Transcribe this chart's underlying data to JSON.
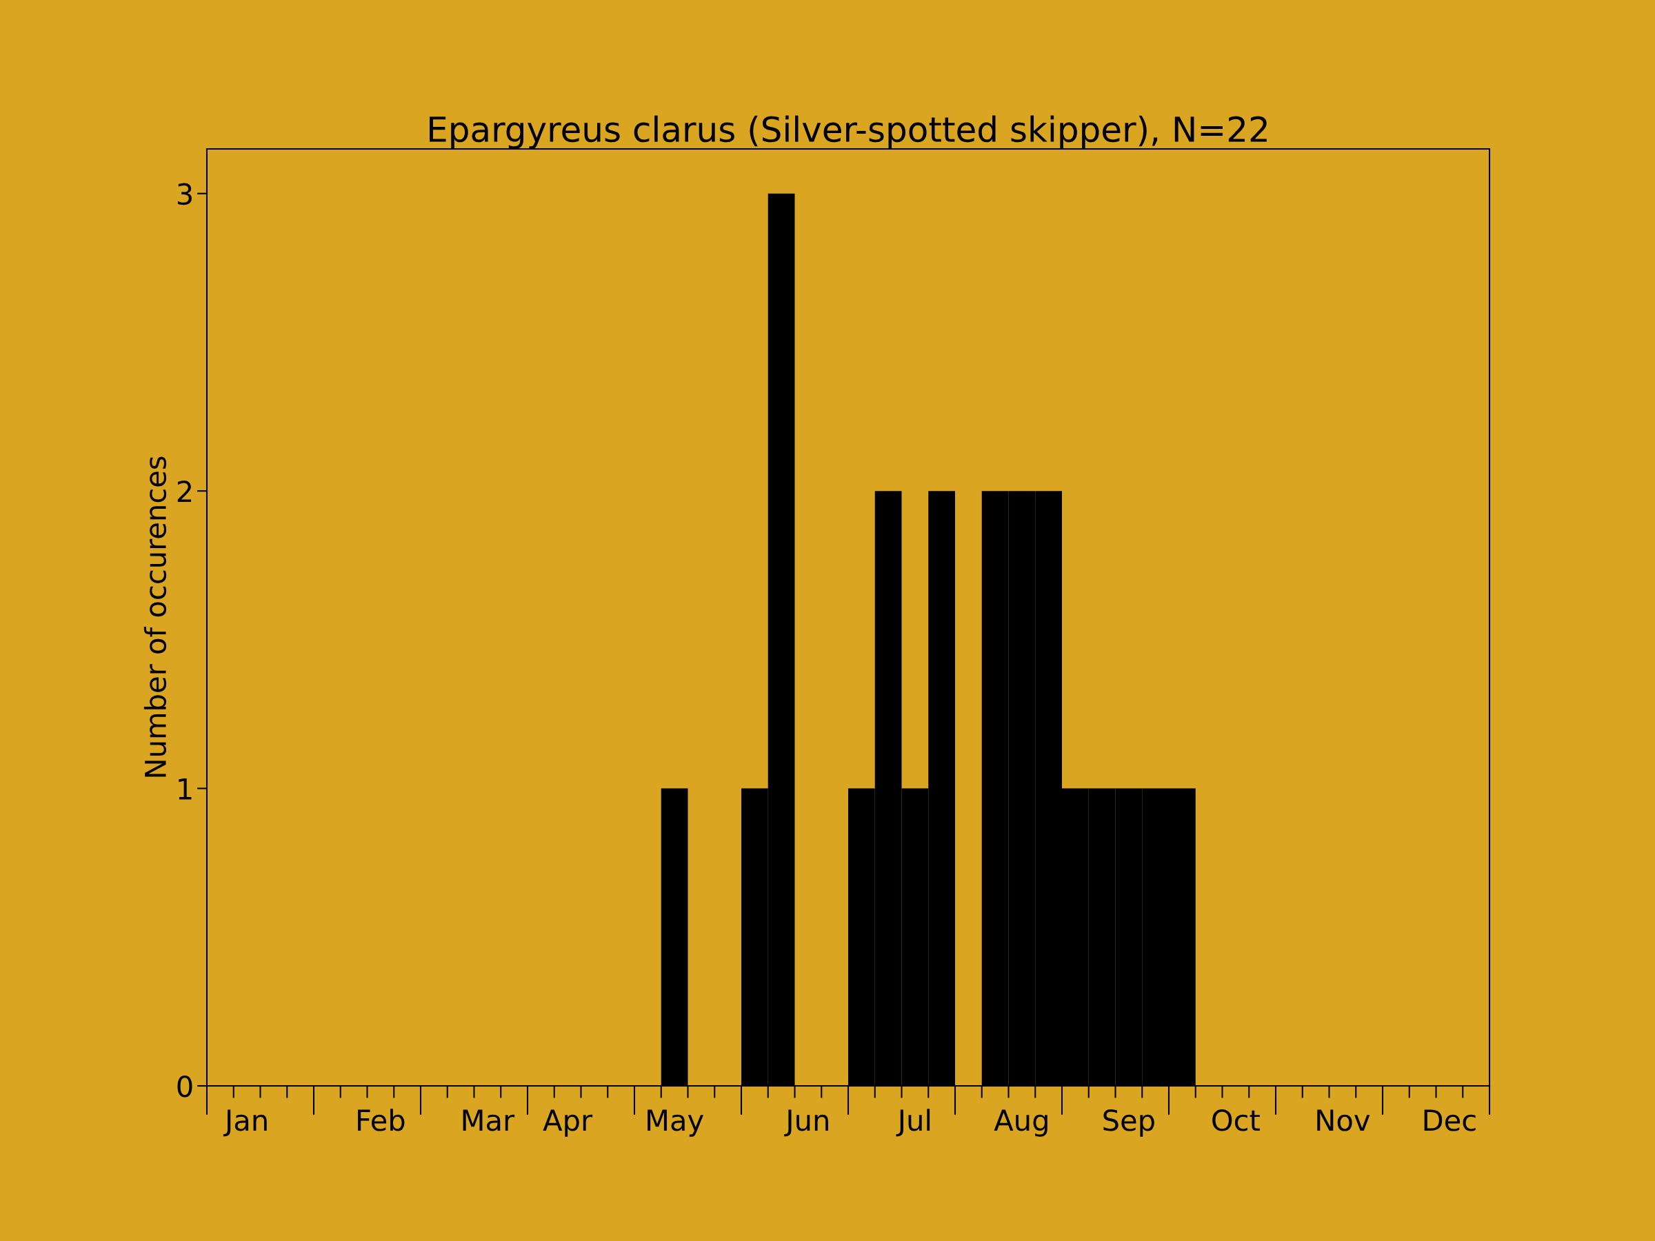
{
  "chart_data": {
    "type": "bar",
    "title": "Epargyreus clarus (Silver-spotted skipper), N=22",
    "ylabel": "Number of occurences",
    "categories": [
      null,
      "Jan",
      null,
      null,
      null,
      null,
      "Feb",
      null,
      null,
      null,
      "Mar",
      null,
      null,
      "Apr",
      null,
      null,
      null,
      "May",
      null,
      null,
      null,
      null,
      "Jun",
      null,
      null,
      null,
      "Jul",
      null,
      null,
      null,
      "Aug",
      null,
      null,
      null,
      "Sep",
      null,
      null,
      null,
      "Oct",
      null,
      null,
      null,
      "Nov",
      null,
      null,
      null,
      "Dec",
      null
    ],
    "values": [
      0,
      0,
      0,
      0,
      0,
      0,
      0,
      0,
      0,
      0,
      0,
      0,
      0,
      0,
      0,
      0,
      0,
      1,
      0,
      0,
      1,
      3,
      0,
      0,
      1,
      2,
      1,
      2,
      0,
      2,
      2,
      2,
      1,
      1,
      1,
      1,
      1,
      0,
      0,
      0,
      0,
      0,
      0,
      0,
      0,
      0,
      0,
      0
    ],
    "color": "#000000",
    "ylim": [
      0,
      3.15
    ],
    "yticks": [
      0,
      1,
      2,
      3
    ],
    "grid": false
  }
}
